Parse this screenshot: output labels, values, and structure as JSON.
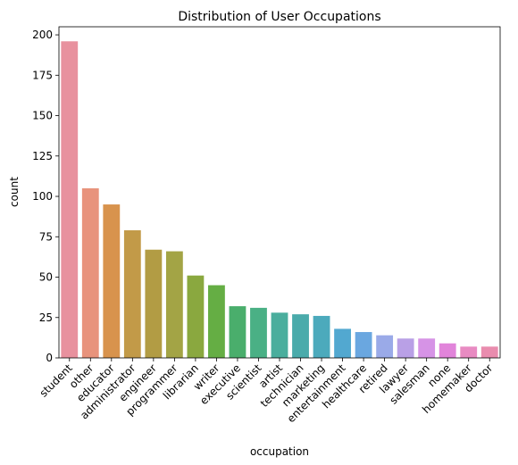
{
  "chart_data": {
    "type": "bar",
    "title": "Distribution of User Occupations",
    "xlabel": "occupation",
    "ylabel": "count",
    "ylim": [
      0,
      205
    ],
    "yticks": [
      0,
      25,
      50,
      75,
      100,
      125,
      150,
      175,
      200
    ],
    "grid": false,
    "categories": [
      "student",
      "other",
      "educator",
      "administrator",
      "engineer",
      "programmer",
      "librarian",
      "writer",
      "executive",
      "scientist",
      "artist",
      "technician",
      "marketing",
      "entertainment",
      "healthcare",
      "retired",
      "lawyer",
      "salesman",
      "none",
      "homemaker",
      "doctor"
    ],
    "values": [
      196,
      105,
      95,
      79,
      67,
      66,
      51,
      45,
      32,
      31,
      28,
      27,
      26,
      18,
      16,
      14,
      12,
      12,
      9,
      7,
      7
    ],
    "colors": [
      "#e8919e",
      "#e8937c",
      "#d8934d",
      "#c29a48",
      "#b29c44",
      "#a3a445",
      "#8aa83f",
      "#65ae44",
      "#4aae6c",
      "#4ab085",
      "#4aae9d",
      "#4aabab",
      "#4caabc",
      "#52a8d0",
      "#6aa7e0",
      "#9aaae8",
      "#b9a0e6",
      "#d693e6",
      "#e184da",
      "#e88bc2",
      "#e98cae"
    ]
  }
}
